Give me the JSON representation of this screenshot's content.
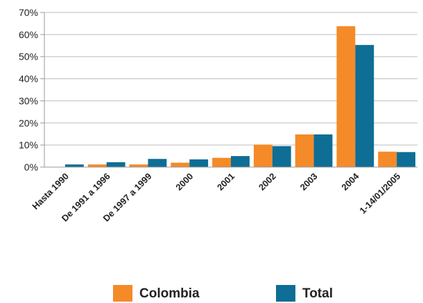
{
  "chart_data": {
    "type": "bar",
    "categories": [
      "Hasta 1990",
      "De 1991 a 1996",
      "De 1997 a 1999",
      "2000",
      "2001",
      "2002",
      "2003",
      "2004",
      "1-14/01/2005"
    ],
    "series": [
      {
        "name": "Colombia",
        "color": "#F58A28",
        "values": [
          0,
          1.2,
          1.2,
          2.0,
          4.2,
          10.2,
          14.8,
          63.8,
          7.0
        ]
      },
      {
        "name": "Total",
        "color": "#0E6E95",
        "values": [
          1.2,
          2.2,
          3.7,
          3.5,
          5.0,
          9.5,
          14.8,
          55.3,
          6.8
        ]
      }
    ],
    "yticks": [
      "0%",
      "10%",
      "20%",
      "30%",
      "40%",
      "50%",
      "60%",
      "70%"
    ],
    "ylim": [
      0,
      70
    ],
    "grid": true,
    "legend": "bottom"
  }
}
